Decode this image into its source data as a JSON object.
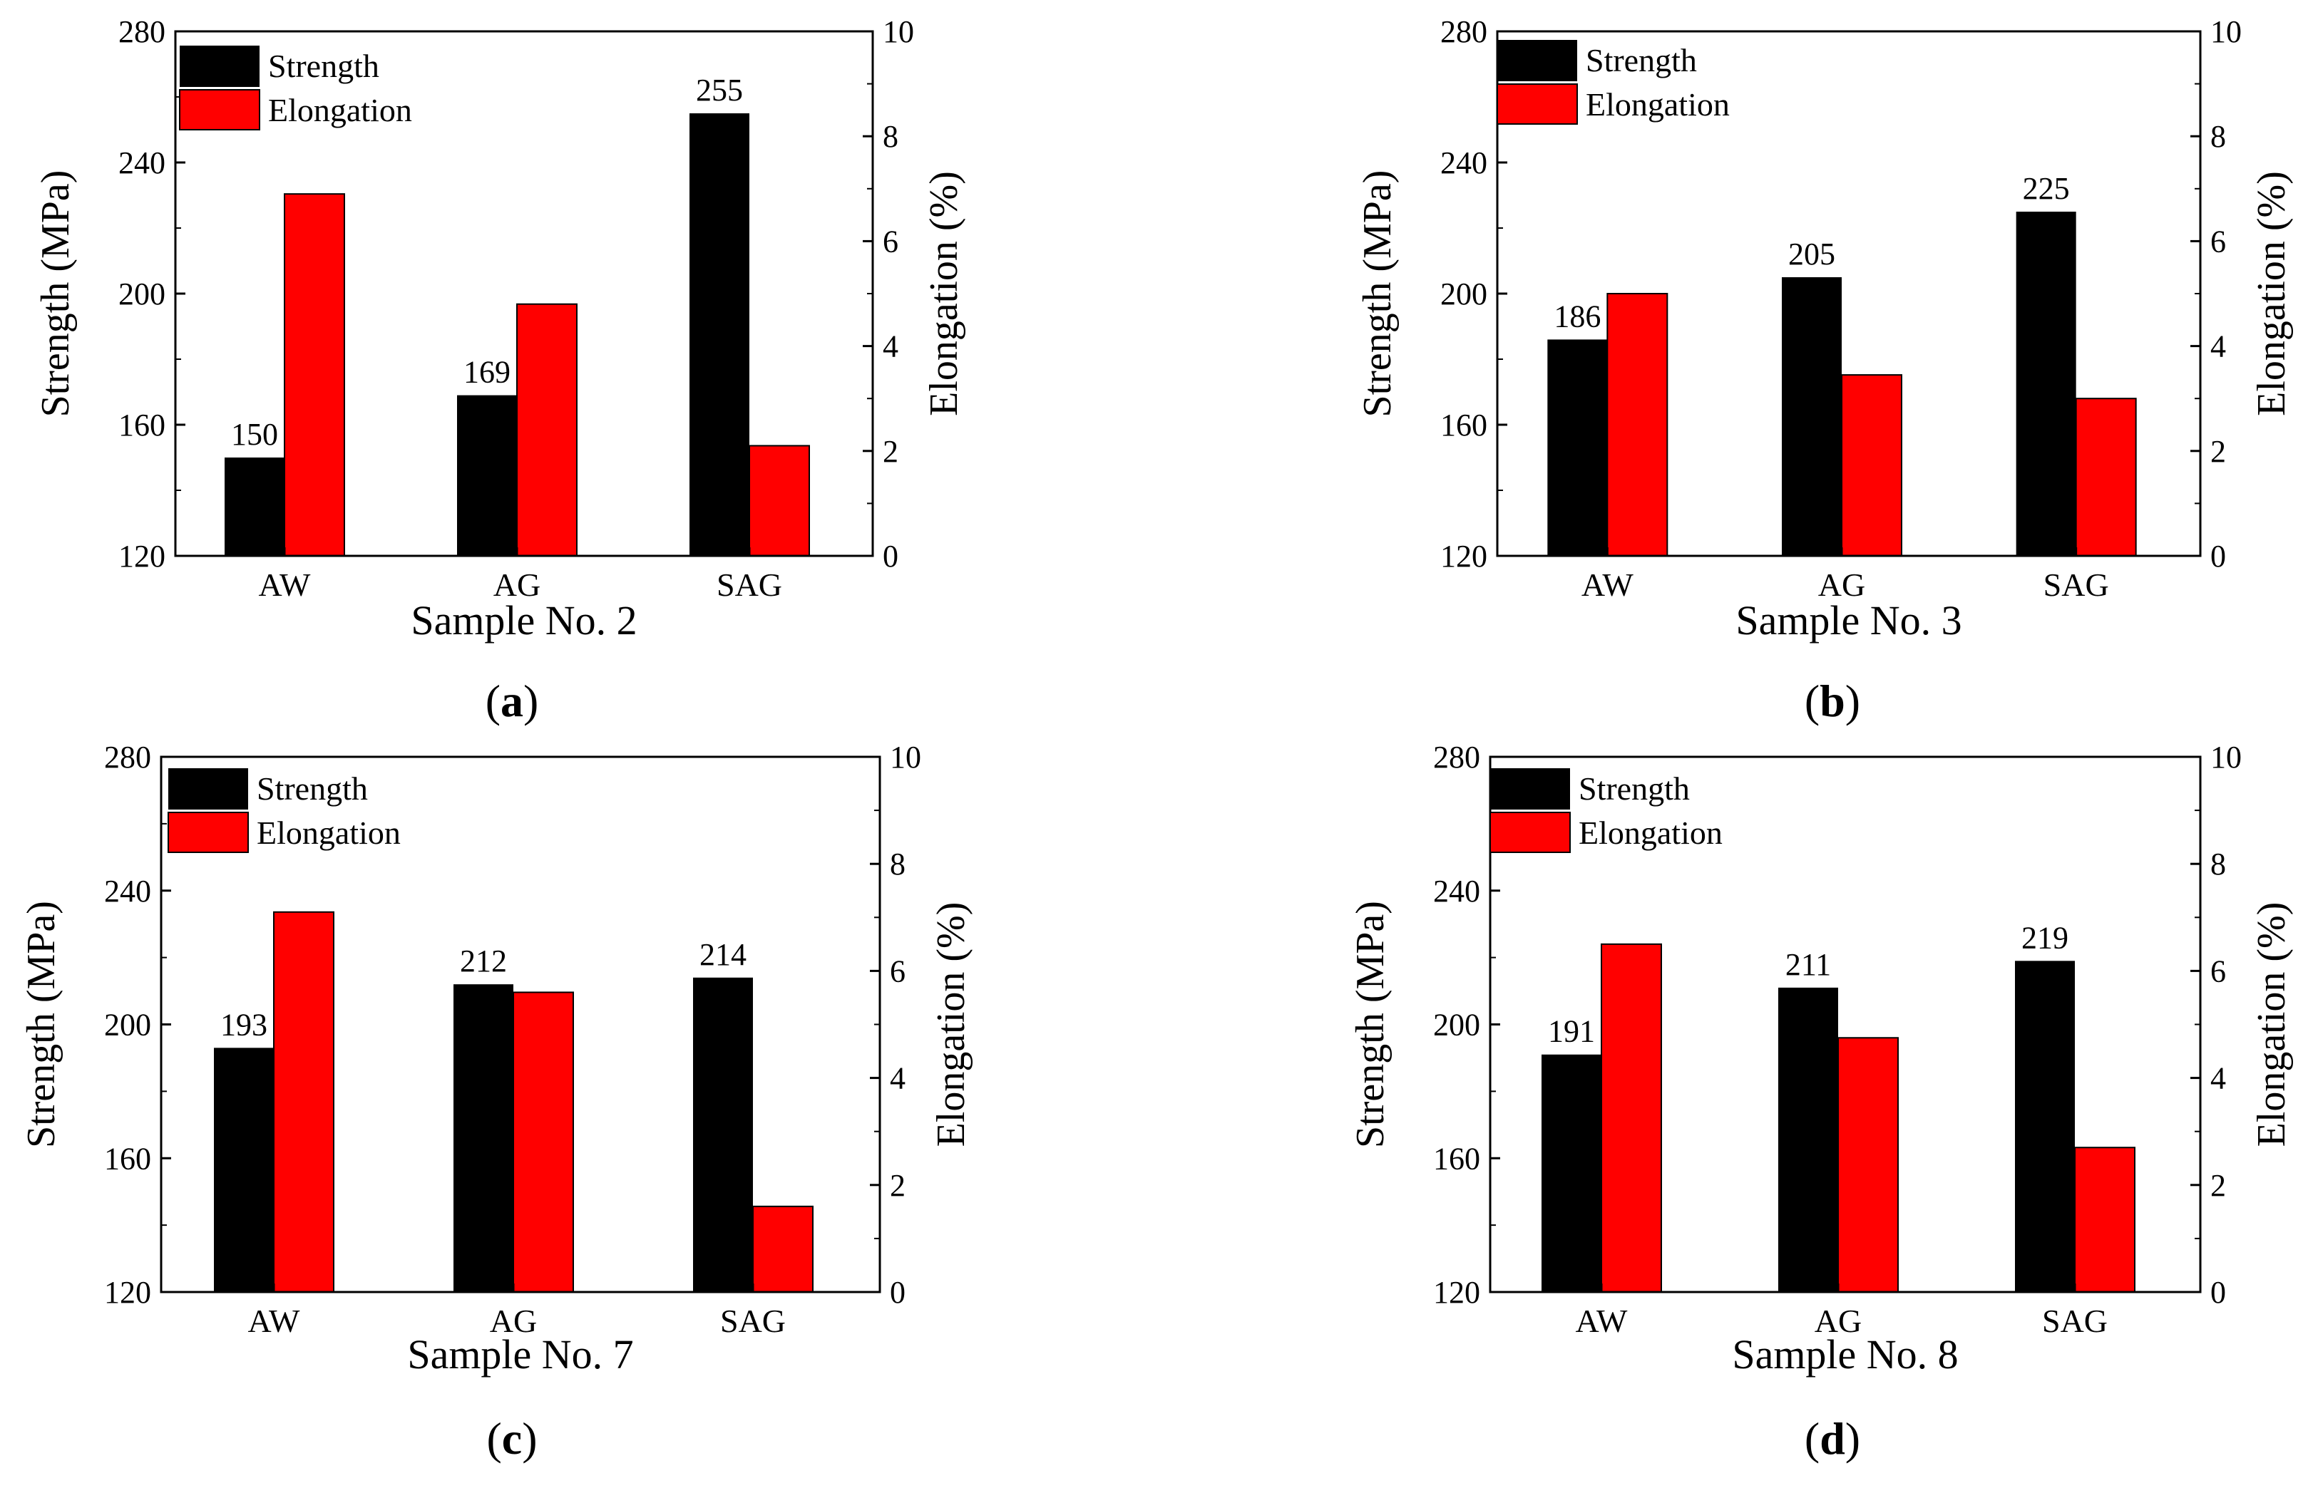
{
  "colors": {
    "strength": "#000000",
    "elongation": "#ff0000"
  },
  "legend": {
    "strength": "Strength",
    "elongation": "Elongation"
  },
  "chart_data": [
    {
      "type": "bar",
      "panel": "a",
      "title": "",
      "xlabel": "Sample No. 2",
      "ylabel": "Strength (MPa)",
      "y2label": "Elongation (%)",
      "ylim": [
        120,
        280
      ],
      "yticks": [
        120,
        160,
        200,
        240,
        280
      ],
      "y2lim": [
        0,
        10
      ],
      "y2ticks": [
        0,
        2,
        4,
        6,
        8,
        10
      ],
      "categories": [
        "AW",
        "AG",
        "SAG"
      ],
      "series": [
        {
          "name": "Strength",
          "axis": "left",
          "values": [
            150,
            169,
            255
          ],
          "labels": [
            "150",
            "169",
            "255"
          ]
        },
        {
          "name": "Elongation",
          "axis": "right",
          "values": [
            6.9,
            4.8,
            2.1
          ]
        }
      ]
    },
    {
      "type": "bar",
      "panel": "b",
      "title": "",
      "xlabel": "Sample No. 3",
      "ylabel": "Strength (MPa)",
      "y2label": "Elongation (%)",
      "ylim": [
        120,
        280
      ],
      "yticks": [
        120,
        160,
        200,
        240,
        280
      ],
      "y2lim": [
        0,
        10
      ],
      "y2ticks": [
        0,
        2,
        4,
        6,
        8,
        10
      ],
      "categories": [
        "AW",
        "AG",
        "SAG"
      ],
      "series": [
        {
          "name": "Strength",
          "axis": "left",
          "values": [
            186,
            205,
            225
          ],
          "labels": [
            "186",
            "205",
            "225"
          ]
        },
        {
          "name": "Elongation",
          "axis": "right",
          "values": [
            5.0,
            3.45,
            3.0
          ]
        }
      ]
    },
    {
      "type": "bar",
      "panel": "c",
      "title": "",
      "xlabel": "Sample No. 7",
      "ylabel": "Strength (MPa)",
      "y2label": "Elongation (%)",
      "ylim": [
        120,
        280
      ],
      "yticks": [
        120,
        160,
        200,
        240,
        280
      ],
      "y2lim": [
        0,
        10
      ],
      "y2ticks": [
        0,
        2,
        4,
        6,
        8,
        10
      ],
      "categories": [
        "AW",
        "AG",
        "SAG"
      ],
      "series": [
        {
          "name": "Strength",
          "axis": "left",
          "values": [
            193,
            212,
            214
          ],
          "labels": [
            "193",
            "212",
            "214"
          ]
        },
        {
          "name": "Elongation",
          "axis": "right",
          "values": [
            7.1,
            5.6,
            1.6
          ]
        }
      ]
    },
    {
      "type": "bar",
      "panel": "d",
      "title": "",
      "xlabel": "Sample No. 8",
      "ylabel": "Strength (MPa)",
      "y2label": "Elongation (%)",
      "ylim": [
        120,
        280
      ],
      "yticks": [
        120,
        160,
        200,
        240,
        280
      ],
      "y2lim": [
        0,
        10
      ],
      "y2ticks": [
        0,
        2,
        4,
        6,
        8,
        10
      ],
      "categories": [
        "AW",
        "AG",
        "SAG"
      ],
      "series": [
        {
          "name": "Strength",
          "axis": "left",
          "values": [
            191,
            211,
            219
          ],
          "labels": [
            "191",
            "211",
            "219"
          ]
        },
        {
          "name": "Elongation",
          "axis": "right",
          "values": [
            6.5,
            4.75,
            2.7
          ]
        }
      ]
    }
  ]
}
